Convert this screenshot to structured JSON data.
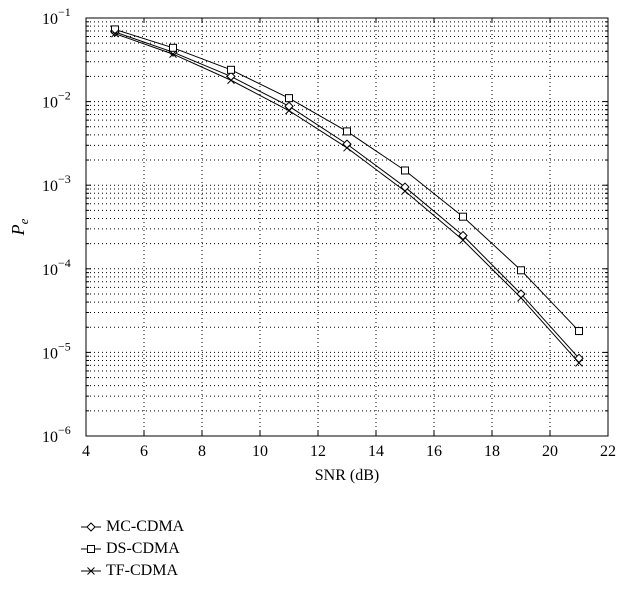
{
  "chart_data": {
    "type": "line",
    "title": "",
    "xlabel": "SNR (dB)",
    "ylabel": "P",
    "ylabel_sub": "e",
    "xlim": [
      4,
      22
    ],
    "ylim": [
      1e-06,
      0.1
    ],
    "yscale": "log",
    "grid": true,
    "legend_placement": "below",
    "x_ticks": [
      4,
      6,
      8,
      10,
      12,
      14,
      16,
      18,
      20,
      22
    ],
    "y_ticks": [
      {
        "base": "10",
        "exp": "−6"
      },
      {
        "base": "10",
        "exp": "−5"
      },
      {
        "base": "10",
        "exp": "−4"
      },
      {
        "base": "10",
        "exp": "−3"
      },
      {
        "base": "10",
        "exp": "−2"
      },
      {
        "base": "10",
        "exp": "−1"
      }
    ],
    "x": [
      5,
      7,
      9,
      11,
      13,
      15,
      17,
      19,
      21
    ],
    "series": [
      {
        "name": "MC-CDMA",
        "marker": "diamond",
        "values": [
          0.068,
          0.039,
          0.02,
          0.0088,
          0.0031,
          0.00095,
          0.00025,
          5e-05,
          8.5e-06
        ]
      },
      {
        "name": "DS-CDMA",
        "marker": "square",
        "values": [
          0.073,
          0.044,
          0.024,
          0.011,
          0.0044,
          0.0015,
          0.00042,
          9.6e-05,
          1.8e-05
        ]
      },
      {
        "name": "TF-CDMA",
        "marker": "cross",
        "values": [
          0.065,
          0.037,
          0.018,
          0.0078,
          0.0028,
          0.00085,
          0.00022,
          4.5e-05,
          7.5e-06
        ]
      }
    ]
  }
}
